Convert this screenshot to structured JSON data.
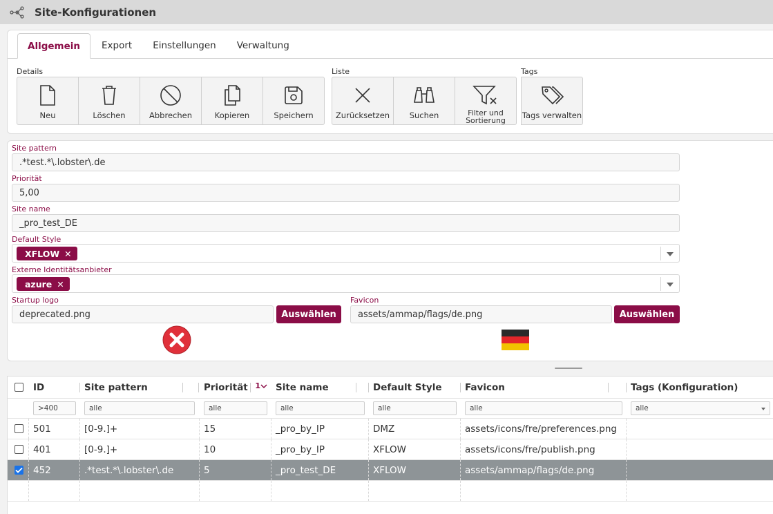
{
  "app": {
    "title": "Site-Konfigurationen",
    "icon": "network-nodes-icon"
  },
  "tabs": [
    {
      "label": "Allgemein",
      "active": true
    },
    {
      "label": "Export",
      "active": false
    },
    {
      "label": "Einstellungen",
      "active": false
    },
    {
      "label": "Verwaltung",
      "active": false
    }
  ],
  "toolbar": {
    "details_label": "Details",
    "liste_label": "Liste",
    "tags_label": "Tags",
    "neu": "Neu",
    "loeschen": "Löschen",
    "abbrechen": "Abbrechen",
    "kopieren": "Kopieren",
    "speichern": "Speichern",
    "zuruecksetzen": "Zurücksetzen",
    "suchen": "Suchen",
    "filter_l1": "Filter und",
    "filter_l2": "Sortierung",
    "tags_verwalten": "Tags verwalten"
  },
  "form": {
    "site_pattern_label": "Site pattern",
    "site_pattern_value": ".*test.*\\.lobster\\.de",
    "prioritaet_label": "Priorität",
    "prioritaet_value": "5,00",
    "site_name_label": "Site name",
    "site_name_value": "_pro_test_DE",
    "default_style_label": "Default Style",
    "default_style_chip": "XFLOW",
    "externe_label": "Externe Identitätsanbieter",
    "externe_chip": "azure",
    "startup_logo_label": "Startup logo",
    "startup_logo_value": "deprecated.png",
    "favicon_label": "Favicon",
    "favicon_value": "assets/ammap/flags/de.png",
    "auswaehlen": "Auswählen",
    "chip_remove": "✕"
  },
  "grid": {
    "columns": [
      "ID",
      "Site pattern",
      "Priorität",
      "Site name",
      "Default Style",
      "Favicon",
      "Tags (Konfiguration)"
    ],
    "sort_indicator": "1",
    "filters": [
      ">400",
      "alle",
      "alle",
      "alle",
      "alle",
      "alle",
      "alle"
    ],
    "rows": [
      {
        "selected": false,
        "cells": [
          "501",
          "[0-9.]+",
          "15",
          "_pro_by_IP",
          "DMZ",
          "assets/icons/fre/preferences.png",
          ""
        ]
      },
      {
        "selected": false,
        "cells": [
          "401",
          "[0-9.]+",
          "10",
          "_pro_by_IP",
          "XFLOW",
          "assets/icons/fre/publish.png",
          ""
        ]
      },
      {
        "selected": true,
        "cells": [
          "452",
          ".*test.*\\.lobster\\.de",
          "5",
          "_pro_test_DE",
          "XFLOW",
          "assets/ammap/flags/de.png",
          ""
        ]
      }
    ]
  },
  "colors": {
    "accent": "#8b0d47",
    "selected_row": "#8e9497",
    "error": "#e0303a"
  }
}
